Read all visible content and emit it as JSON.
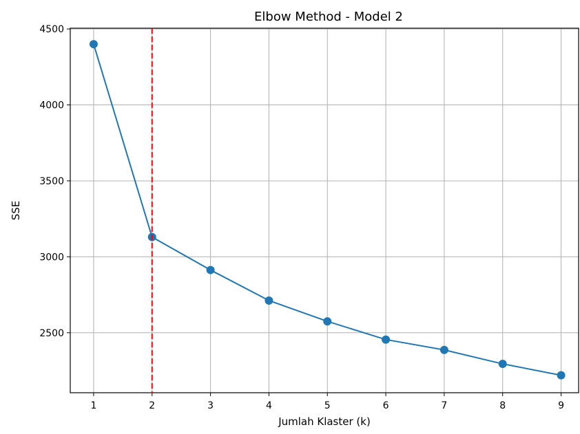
{
  "chart_data": {
    "type": "line",
    "title": "Elbow Method - Model 2",
    "xlabel": "Jumlah Klaster (k)",
    "ylabel": "SSE",
    "x": [
      1,
      2,
      3,
      4,
      5,
      6,
      7,
      8,
      9
    ],
    "y": [
      4400,
      3130,
      2913,
      2712,
      2575,
      2455,
      2387,
      2295,
      2220
    ],
    "xlim": [
      0.6,
      9.3
    ],
    "ylim": [
      2105,
      4505
    ],
    "xticks": [
      "1",
      "2",
      "3",
      "4",
      "5",
      "6",
      "7",
      "8",
      "9"
    ],
    "yticks": [
      "2500",
      "3000",
      "3500",
      "4000",
      "4500"
    ],
    "grid": true,
    "line_color": "#1f77b4",
    "vline": {
      "x": 2,
      "color": "#ff0000",
      "style": "dashed"
    }
  }
}
